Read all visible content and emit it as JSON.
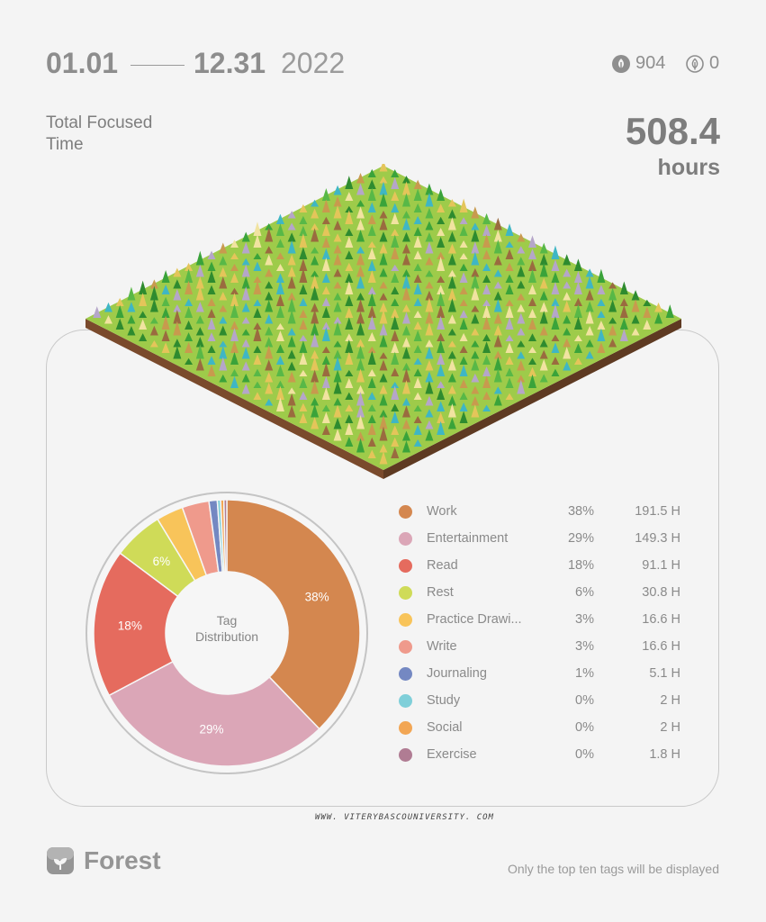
{
  "header": {
    "start_date": "01.01",
    "end_date": "12.31",
    "year": "2022",
    "healthy_trees": "904",
    "withered_trees": "0"
  },
  "summary": {
    "label": "Total Focused Time",
    "value": "508.4",
    "unit": "hours"
  },
  "chart_data": {
    "type": "pie",
    "title": "Tag Distribution",
    "donut": true,
    "series": [
      {
        "name": "Work",
        "percent": 38,
        "value": 191.5,
        "percent_label": "38%",
        "hours_label": "191.5 H",
        "color": "#d4874f"
      },
      {
        "name": "Entertainment",
        "percent": 29,
        "value": 149.3,
        "percent_label": "29%",
        "hours_label": "149.3 H",
        "color": "#dba6b7"
      },
      {
        "name": "Read",
        "percent": 18,
        "value": 91.1,
        "percent_label": "18%",
        "hours_label": "91.1 H",
        "color": "#e56b5e"
      },
      {
        "name": "Rest",
        "percent": 6,
        "value": 30.8,
        "percent_label": "6%",
        "hours_label": "30.8 H",
        "color": "#cfdb58"
      },
      {
        "name": "Practice Drawi...",
        "percent": 3,
        "value": 16.6,
        "percent_label": "3%",
        "hours_label": "16.6 H",
        "color": "#f8c45a"
      },
      {
        "name": "Write",
        "percent": 3,
        "value": 16.6,
        "percent_label": "3%",
        "hours_label": "16.6 H",
        "color": "#ef9a8c"
      },
      {
        "name": "Journaling",
        "percent": 1,
        "value": 5.1,
        "percent_label": "1%",
        "hours_label": "5.1 H",
        "color": "#7488c2"
      },
      {
        "name": "Study",
        "percent": 0,
        "value": 2,
        "percent_label": "0%",
        "hours_label": "2 H",
        "color": "#7fcfd9"
      },
      {
        "name": "Social",
        "percent": 0,
        "value": 2,
        "percent_label": "0%",
        "hours_label": "2 H",
        "color": "#f2a654"
      },
      {
        "name": "Exercise",
        "percent": 0,
        "value": 1.8,
        "percent_label": "0%",
        "hours_label": "1.8 H",
        "color": "#b07c93"
      }
    ],
    "slice_labels": [
      "38%",
      "29%",
      "18%",
      "6%"
    ]
  },
  "watermark": "WWW. VITERYBASCOUNIVERSITY. COM",
  "footer": {
    "brand": "Forest",
    "note": "Only the top ten tags will be displayed"
  }
}
